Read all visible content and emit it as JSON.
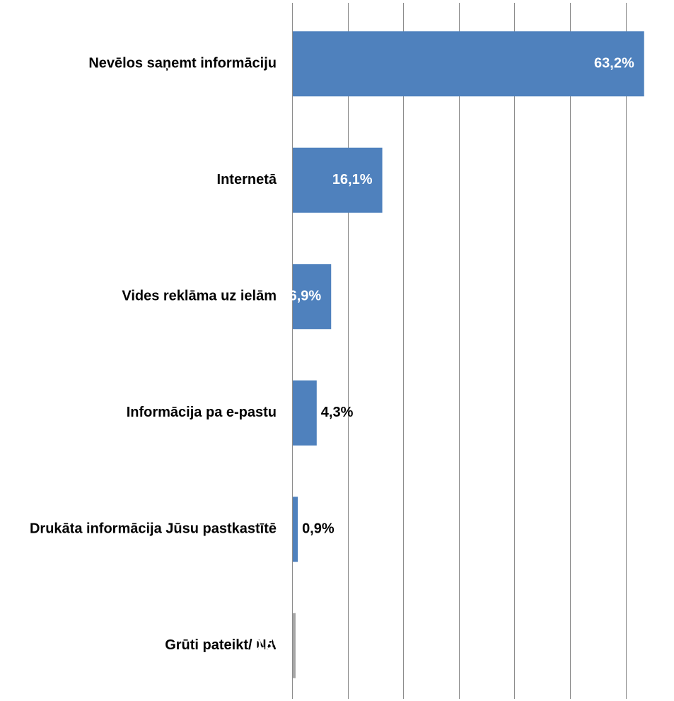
{
  "chart_data": {
    "type": "bar",
    "orientation": "horizontal",
    "categories": [
      "Nevēlos saņemt informāciju",
      "Internetā",
      "Vides reklāma uz ielām",
      "Informācija pa e-pastu",
      "Drukāta informācija Jūsu pastkastītē",
      "Grūti pateikt/ NA"
    ],
    "values": [
      63.2,
      16.1,
      6.9,
      4.3,
      0.9,
      0.5
    ],
    "value_labels": [
      "63,2%",
      "16,1%",
      "6,9%",
      "4,3%",
      "0,9%",
      "0,5%"
    ],
    "bar_colors": [
      "#4f81bd",
      "#4f81bd",
      "#4f81bd",
      "#4f81bd",
      "#4f81bd",
      "#a6a6a6"
    ],
    "label_colors": [
      "#ffffff",
      "#ffffff",
      "#ffffff",
      "#000000",
      "#000000",
      "#ffffff"
    ],
    "label_position": [
      "inside",
      "inside",
      "inside",
      "outside",
      "outside",
      "inside"
    ],
    "xlim": [
      0,
      70
    ],
    "x_gridline_step": 10,
    "grid": true,
    "legend": false,
    "title": "",
    "xlabel": "",
    "ylabel": ""
  }
}
